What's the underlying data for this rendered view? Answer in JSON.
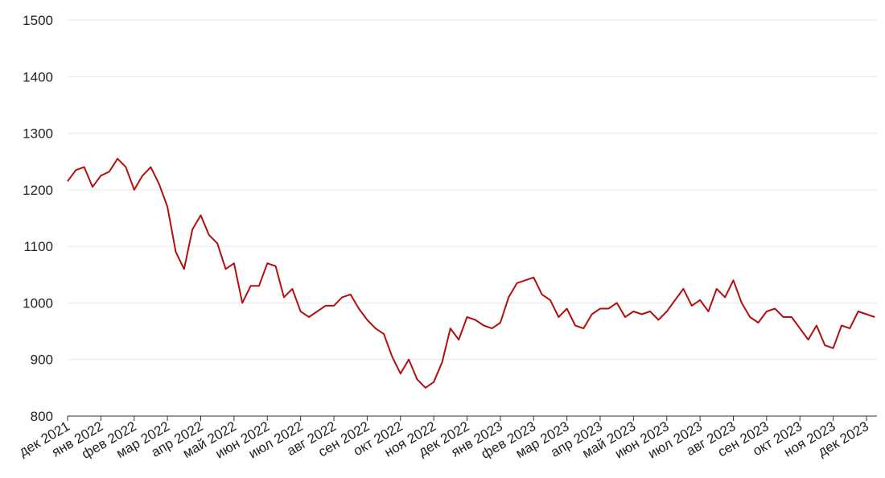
{
  "chart_data": {
    "type": "line",
    "categories": [
      "дек 2021",
      null,
      null,
      null,
      "янв 2022",
      null,
      null,
      null,
      "фев 2022",
      null,
      null,
      null,
      "мар 2022",
      null,
      null,
      null,
      "апр 2022",
      null,
      null,
      null,
      "май 2022",
      null,
      null,
      null,
      "июн 2022",
      null,
      null,
      null,
      "июл 2022",
      null,
      null,
      null,
      "авг 2022",
      null,
      null,
      null,
      "сен 2022",
      null,
      null,
      null,
      "окт 2022",
      null,
      null,
      null,
      "ноя 2022",
      null,
      null,
      null,
      "дек 2022",
      null,
      null,
      null,
      "янв 2023",
      null,
      null,
      null,
      "фев 2023",
      null,
      null,
      null,
      "мар 2023",
      null,
      null,
      null,
      "апр 2023",
      null,
      null,
      null,
      "май 2023",
      null,
      null,
      null,
      "июн 2023",
      null,
      null,
      null,
      "июл 2023",
      null,
      null,
      null,
      "авг 2023",
      null,
      null,
      null,
      "сен 2023",
      null,
      null,
      null,
      "окт 2023",
      null,
      null,
      null,
      "ноя 2023",
      null,
      null,
      null,
      "дек 2023",
      null
    ],
    "series": [
      {
        "color": "#b30f0f",
        "values": [
          1215,
          1235,
          1240,
          1205,
          1225,
          1232,
          1255,
          1240,
          1200,
          1225,
          1240,
          1210,
          1170,
          1090,
          1060,
          1130,
          1155,
          1120,
          1105,
          1060,
          1070,
          1000,
          1030,
          1030,
          1070,
          1065,
          1010,
          1025,
          985,
          975,
          985,
          995,
          995,
          1010,
          1015,
          990,
          970,
          955,
          945,
          905,
          875,
          900,
          865,
          850,
          860,
          895,
          955,
          935,
          975,
          970,
          960,
          955,
          965,
          1010,
          1035,
          1040,
          1045,
          1015,
          1005,
          975,
          990,
          960,
          955,
          980,
          990,
          990,
          1000,
          975,
          985,
          980,
          985,
          970,
          985,
          1005,
          1025,
          995,
          1005,
          985,
          1025,
          1010,
          1040,
          1000,
          975,
          965,
          985,
          990,
          975,
          975,
          955,
          935,
          960,
          925,
          920,
          960,
          955,
          985,
          980,
          975
        ]
      }
    ],
    "ylim": [
      800,
      1500
    ],
    "yticks": [
      800,
      900,
      1000,
      1100,
      1200,
      1300,
      1400,
      1500
    ],
    "grid": true
  }
}
